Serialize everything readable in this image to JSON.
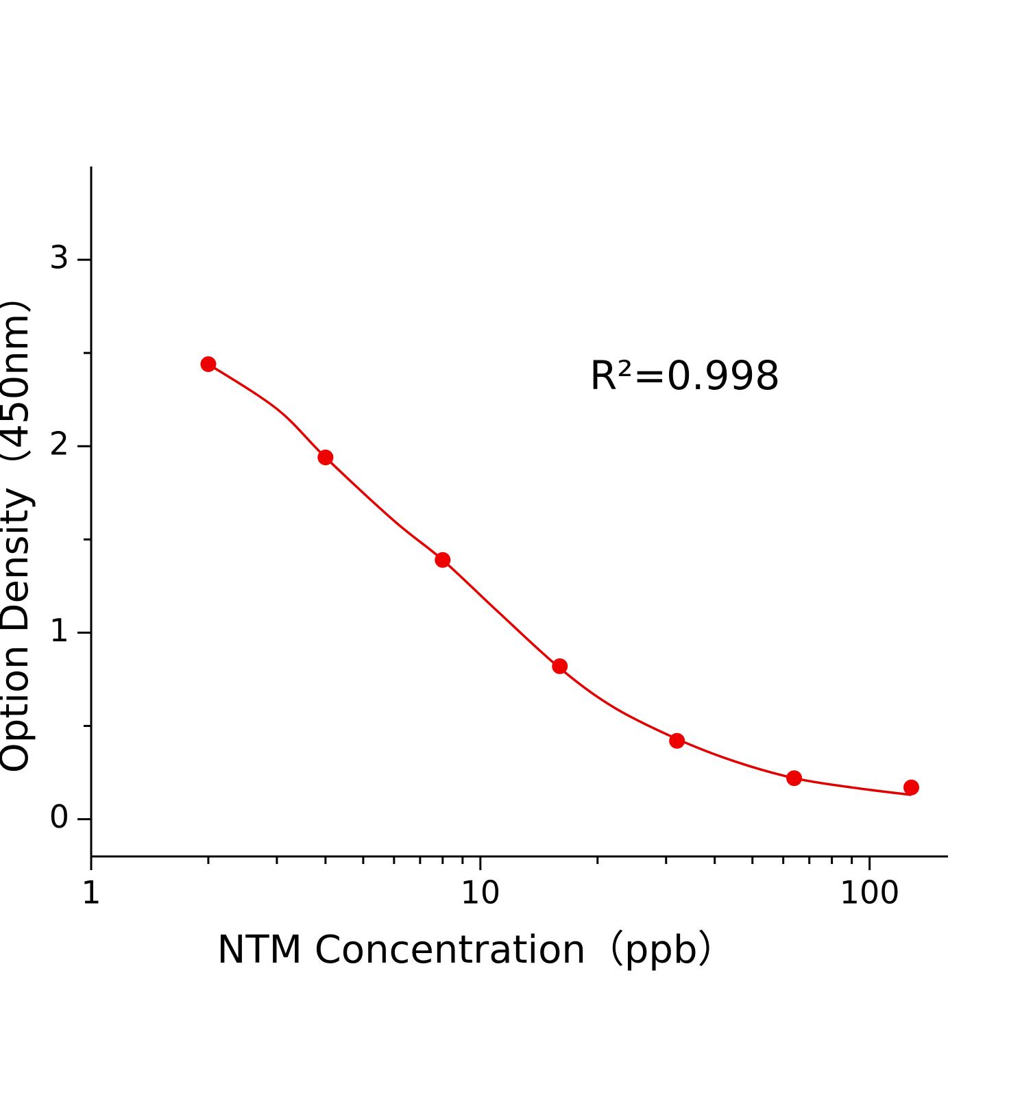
{
  "chart_data": {
    "type": "scatter",
    "x_label": "NTM Concentration（ppb）",
    "y_label": "Option Density（450nm）",
    "annotation": "R²=0.998",
    "x_scale": "log",
    "xlim": [
      1,
      159
    ],
    "xticks": [
      1,
      10,
      100
    ],
    "ylim": [
      -0.2,
      3.5
    ],
    "yticks": [
      0,
      1,
      2,
      3
    ],
    "color": "#ee0000",
    "x": [
      2,
      4,
      8,
      16,
      32,
      64,
      128
    ],
    "values": [
      2.44,
      1.94,
      1.39,
      0.82,
      0.42,
      0.22,
      0.17
    ],
    "fit": {
      "color": "#e00000",
      "x": [
        2,
        3,
        4,
        6,
        8,
        11,
        16,
        22,
        32,
        45,
        64,
        90,
        128
      ],
      "values": [
        2.44,
        2.2,
        1.94,
        1.6,
        1.39,
        1.12,
        0.81,
        0.6,
        0.43,
        0.31,
        0.22,
        0.17,
        0.13
      ]
    }
  }
}
